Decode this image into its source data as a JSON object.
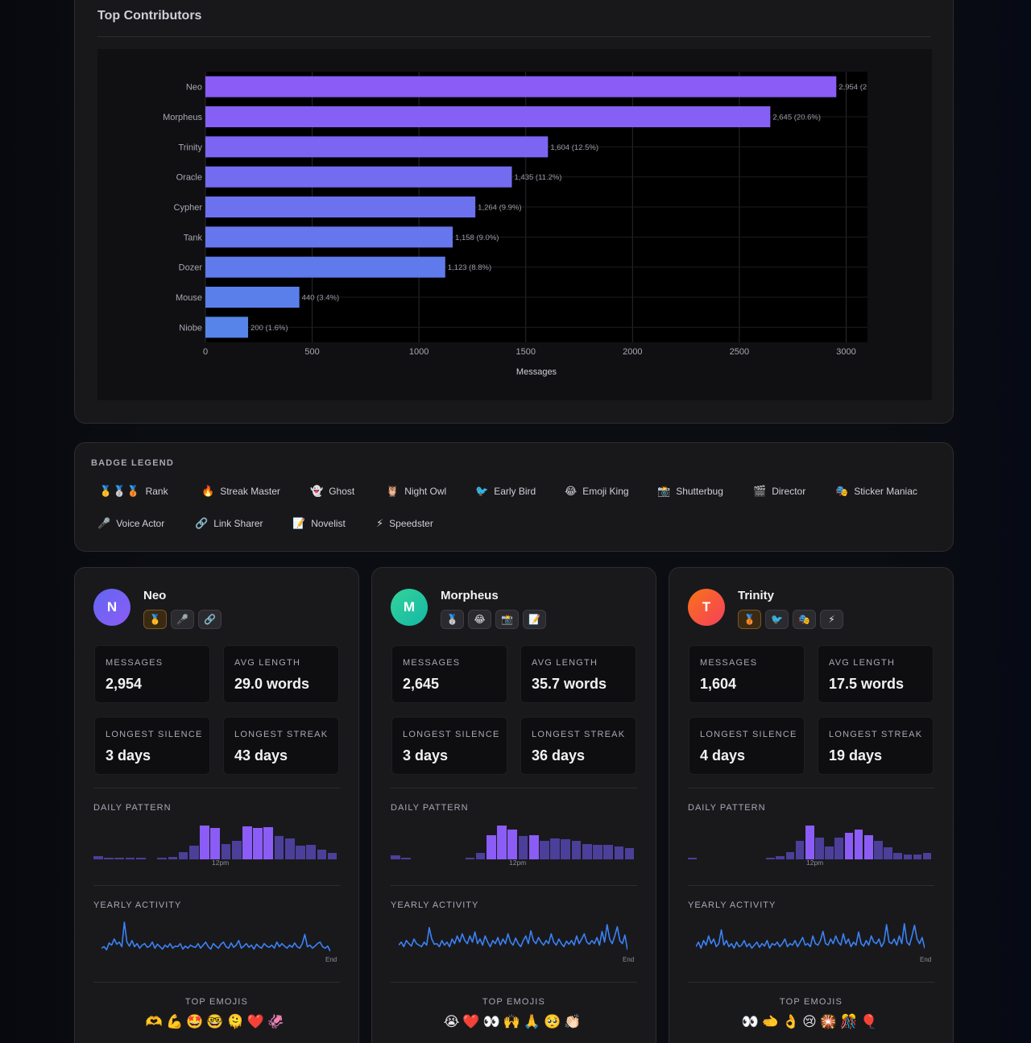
{
  "chart_section": {
    "title": "Top Contributors"
  },
  "chart_data": {
    "type": "bar",
    "orientation": "horizontal",
    "title": "Top Contributors",
    "xlabel": "Messages",
    "ylabel": "",
    "xlim": [
      0,
      3100
    ],
    "xticks": [
      "0",
      "500",
      "1000",
      "1500",
      "2000",
      "2500",
      "3000"
    ],
    "categories": [
      "Neo",
      "Morpheus",
      "Trinity",
      "Oracle",
      "Cypher",
      "Tank",
      "Dozer",
      "Mouse",
      "Niobe"
    ],
    "values": [
      2954,
      2645,
      1604,
      1435,
      1264,
      1158,
      1123,
      440,
      200
    ],
    "labels": [
      "2,954 (2",
      "2,645 (20.6%)",
      "1,604 (12.5%)",
      "1,435 (11.2%)",
      "1,264 (9.9%)",
      "1,158 (9.0%)",
      "1,123 (8.8%)",
      "440 (3.4%)",
      "200 (1.6%)"
    ],
    "colors": [
      "#8b5cf6",
      "#8660f4",
      "#7c65f2",
      "#746cf0",
      "#6c71ee",
      "#6676ec",
      "#5f7aea",
      "#5b7fea",
      "#5784e8"
    ],
    "grid": true
  },
  "legend": {
    "title": "BADGE LEGEND",
    "items": [
      {
        "icon": "🥇🥈🥉",
        "label": "Rank"
      },
      {
        "icon": "🔥",
        "label": "Streak Master"
      },
      {
        "icon": "👻",
        "label": "Ghost"
      },
      {
        "icon": "🦉",
        "label": "Night Owl"
      },
      {
        "icon": "🐦",
        "label": "Early Bird"
      },
      {
        "icon": "😂",
        "label": "Emoji King"
      },
      {
        "icon": "📸",
        "label": "Shutterbug"
      },
      {
        "icon": "🎬",
        "label": "Director"
      },
      {
        "icon": "🎭",
        "label": "Sticker Maniac"
      },
      {
        "icon": "🎤",
        "label": "Voice Actor"
      },
      {
        "icon": "🔗",
        "label": "Link Sharer"
      },
      {
        "icon": "📝",
        "label": "Novelist"
      },
      {
        "icon": "⚡",
        "label": "Speedster"
      }
    ]
  },
  "labels": {
    "messages": "MESSAGES",
    "avg_length": "AVG LENGTH",
    "longest_silence": "LONGEST SILENCE",
    "longest_streak": "LONGEST STREAK",
    "daily_pattern": "DAILY PATTERN",
    "noon": "12pm",
    "yearly_activity": "YEARLY ACTIVITY",
    "end": "End",
    "top_emojis": "TOP EMOJIS"
  },
  "profiles": [
    {
      "initial": "N",
      "name": "Neo",
      "avatar_from": "#6366f1",
      "avatar_to": "#8b5cf6",
      "badges": [
        "🥇",
        "🎤",
        "🔗"
      ],
      "messages": "2,954",
      "avg_length": "29.0 words",
      "longest_silence": "3 days",
      "longest_streak": "43 days",
      "daily": [
        0.1,
        0.05,
        0.03,
        0.03,
        0.03,
        0,
        0.03,
        0.08,
        0.22,
        0.4,
        1.0,
        0.92,
        0.45,
        0.55,
        0.98,
        0.92,
        0.96,
        0.68,
        0.62,
        0.4,
        0.43,
        0.28,
        0.2
      ],
      "yearly": [
        0.15,
        0.2,
        0.1,
        0.32,
        0.25,
        0.45,
        0.28,
        0.35,
        0.2,
        1.0,
        0.35,
        0.22,
        0.4,
        0.2,
        0.3,
        0.15,
        0.25,
        0.3,
        0.18,
        0.22,
        0.35,
        0.15,
        0.28,
        0.2,
        0.12,
        0.25,
        0.18,
        0.3,
        0.15,
        0.22,
        0.2,
        0.3,
        0.12,
        0.22,
        0.15,
        0.25,
        0.2,
        0.18,
        0.3,
        0.15,
        0.25,
        0.35,
        0.2,
        0.12,
        0.3,
        0.22,
        0.15,
        0.28,
        0.35,
        0.2,
        0.15,
        0.32,
        0.18,
        0.25,
        0.4,
        0.15,
        0.22,
        0.3,
        0.18,
        0.25,
        0.12,
        0.28,
        0.2,
        0.15,
        0.3,
        0.22,
        0.18,
        0.25,
        0.15,
        0.35,
        0.2,
        0.3,
        0.22,
        0.15,
        0.25,
        0.18,
        0.32,
        0.2,
        0.15,
        0.3,
        0.6,
        0.2,
        0.25,
        0.15,
        0.22,
        0.3,
        0.35,
        0.2,
        0.15,
        0.22,
        0.05
      ],
      "top_emojis": "🫶💪🤩🤓🫠❤️🦑"
    },
    {
      "initial": "M",
      "name": "Morpheus",
      "avatar_from": "#34d399",
      "avatar_to": "#14b8a6",
      "badges": [
        "🥈",
        "😂",
        "📸",
        "📝"
      ],
      "messages": "2,645",
      "avg_length": "35.7 words",
      "longest_silence": "3 days",
      "longest_streak": "36 days",
      "daily": [
        0.12,
        0.02,
        0,
        0,
        0,
        0,
        0,
        0.05,
        0.2,
        0.72,
        1.0,
        0.88,
        0.68,
        0.72,
        0.55,
        0.62,
        0.6,
        0.55,
        0.45,
        0.42,
        0.42,
        0.38,
        0.33
      ],
      "yearly": [
        0.25,
        0.35,
        0.2,
        0.4,
        0.3,
        0.22,
        0.45,
        0.3,
        0.25,
        0.2,
        0.35,
        0.25,
        0.82,
        0.45,
        0.28,
        0.3,
        0.2,
        0.4,
        0.25,
        0.35,
        0.2,
        0.45,
        0.3,
        0.55,
        0.35,
        0.62,
        0.4,
        0.3,
        0.55,
        0.35,
        0.68,
        0.3,
        0.45,
        0.25,
        0.55,
        0.35,
        0.2,
        0.4,
        0.3,
        0.5,
        0.25,
        0.45,
        0.3,
        0.62,
        0.35,
        0.25,
        0.48,
        0.3,
        0.2,
        0.4,
        0.55,
        0.3,
        0.72,
        0.4,
        0.3,
        0.5,
        0.35,
        0.25,
        0.4,
        0.3,
        0.62,
        0.35,
        0.25,
        0.45,
        0.3,
        0.2,
        0.38,
        0.28,
        0.4,
        0.25,
        0.55,
        0.3,
        0.45,
        0.62,
        0.35,
        0.28,
        0.4,
        0.3,
        0.5,
        0.25,
        0.7,
        0.35,
        0.92,
        0.45,
        0.3,
        0.55,
        0.85,
        0.4,
        0.3,
        0.58,
        0.1
      ],
      "top_emojis": "😭❤️👀🙌🙏🥺👏🏻"
    },
    {
      "initial": "T",
      "name": "Trinity",
      "avatar_from": "#f97316",
      "avatar_to": "#f43f5e",
      "badges": [
        "🥉",
        "🐦",
        "🎭",
        "⚡"
      ],
      "messages": "1,604",
      "avg_length": "17.5 words",
      "longest_silence": "4 days",
      "longest_streak": "19 days",
      "daily": [
        0.05,
        0,
        0,
        0,
        0,
        0,
        0,
        0,
        0.05,
        0.1,
        0.22,
        0.55,
        1.0,
        0.65,
        0.38,
        0.65,
        0.78,
        0.88,
        0.72,
        0.55,
        0.35,
        0.2,
        0.15,
        0.15,
        0.2
      ],
      "yearly": [
        0.2,
        0.35,
        0.15,
        0.4,
        0.25,
        0.55,
        0.3,
        0.45,
        0.2,
        0.3,
        0.75,
        0.25,
        0.4,
        0.2,
        0.3,
        0.15,
        0.35,
        0.2,
        0.25,
        0.4,
        0.2,
        0.3,
        0.15,
        0.25,
        0.35,
        0.18,
        0.3,
        0.22,
        0.4,
        0.15,
        0.3,
        0.25,
        0.35,
        0.2,
        0.3,
        0.45,
        0.2,
        0.3,
        0.25,
        0.4,
        0.2,
        0.35,
        0.5,
        0.25,
        0.3,
        0.2,
        0.55,
        0.3,
        0.25,
        0.4,
        0.7,
        0.3,
        0.25,
        0.45,
        0.3,
        0.55,
        0.35,
        0.25,
        0.62,
        0.3,
        0.45,
        0.2,
        0.35,
        0.25,
        0.68,
        0.3,
        0.22,
        0.4,
        0.25,
        0.55,
        0.35,
        0.3,
        0.45,
        0.2,
        0.35,
        0.92,
        0.35,
        0.3,
        0.45,
        0.25,
        0.55,
        0.3,
        0.95,
        0.35,
        0.25,
        0.55,
        0.9,
        0.45,
        0.3,
        0.5,
        0.15
      ],
      "top_emojis": "👀🫲👌😢🎇🎊🎈"
    }
  ]
}
